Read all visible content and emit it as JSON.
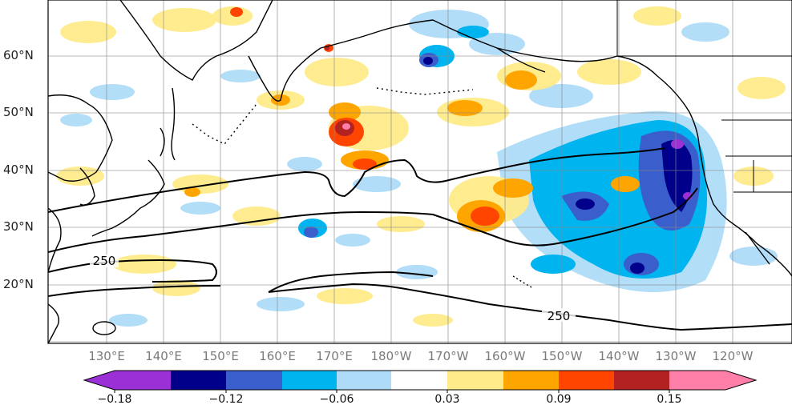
{
  "map": {
    "lat_labels": [
      "60°N",
      "50°N",
      "40°N",
      "30°N",
      "20°N"
    ],
    "lon_labels": [
      "130°E",
      "140°E",
      "150°E",
      "160°E",
      "170°E",
      "180°W",
      "170°W",
      "160°W",
      "150°W",
      "140°W",
      "130°W",
      "120°W"
    ],
    "contour_labels": [
      "250",
      "250"
    ],
    "colors": {
      "coast": "#000000",
      "grid": "#888888",
      "contour": "#000000"
    }
  },
  "colorbar": {
    "tick_labels": [
      "−0.18",
      "−0.12",
      "−0.06",
      "0.03",
      "0.09",
      "0.15"
    ],
    "colors": [
      "#9b30d6",
      "#00008b",
      "#3a5fcd",
      "#00b4f0",
      "#aedcf8",
      "#ffffff",
      "#ffeb8a",
      "#ffa500",
      "#ff4500",
      "#b22222",
      "#ff7fa8"
    ]
  }
}
